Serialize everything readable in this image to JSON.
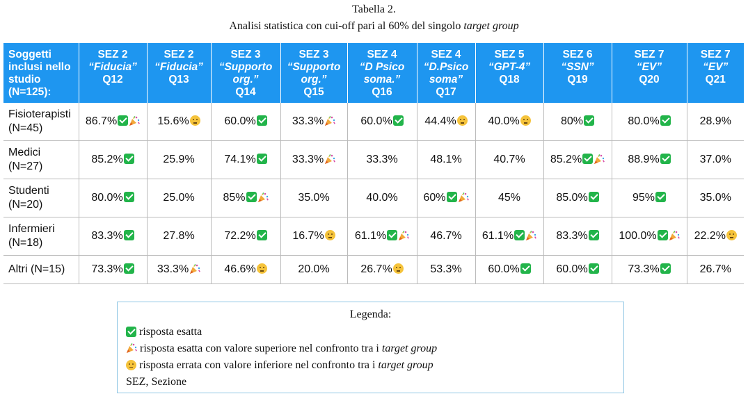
{
  "caption": {
    "title": "Tabella 2.",
    "subtitle_pre": "Analisi statistica con cui-off  pari al 60% del singolo ",
    "subtitle_em": "target group"
  },
  "table": {
    "header_first": [
      "Soggetti",
      "inclusi nello",
      "studio",
      "(N=125):"
    ],
    "columns": [
      {
        "sez": "SEZ 2",
        "name": "“Fiducia”",
        "q": "Q12"
      },
      {
        "sez": "SEZ 2",
        "name": "“Fiducia”",
        "q": "Q13"
      },
      {
        "sez": "SEZ 3",
        "name": "“Supporto org.”",
        "q": "Q14"
      },
      {
        "sez": "SEZ 3",
        "name": "“Supporto org.”",
        "q": "Q15"
      },
      {
        "sez": "SEZ 4",
        "name": "“D Psico soma.”",
        "q": "Q16"
      },
      {
        "sez": "SEZ 4",
        "name": "“D.Psico soma”",
        "q": "Q17"
      },
      {
        "sez": "SEZ 5",
        "name": "“GPT-4”",
        "q": "Q18"
      },
      {
        "sez": "SEZ 6",
        "name": "“SSN”",
        "q": "Q19"
      },
      {
        "sez": "SEZ 7",
        "name": "“EV”",
        "q": "Q20"
      },
      {
        "sez": "SEZ  7",
        "name": "“EV”",
        "q": "Q21"
      }
    ],
    "rows": [
      {
        "label": [
          "Fisioterapisti",
          "(N=45)"
        ],
        "cells": [
          {
            "v": "86.7%",
            "s": [
              "check",
              "party"
            ]
          },
          {
            "v": "15.6%",
            "s": [
              "think"
            ]
          },
          {
            "v": "60.0%",
            "s": [
              "check"
            ]
          },
          {
            "v": "33.3%",
            "s": [
              "party"
            ]
          },
          {
            "v": "60.0%",
            "s": [
              "check"
            ]
          },
          {
            "v": "44.4%",
            "s": [
              "think"
            ]
          },
          {
            "v": "40.0%",
            "s": [
              "think"
            ]
          },
          {
            "v": "80%",
            "s": [
              "check"
            ]
          },
          {
            "v": "80.0%",
            "s": [
              "check"
            ]
          },
          {
            "v": "28.9%",
            "s": []
          }
        ]
      },
      {
        "label": [
          "Medici",
          "(N=27)"
        ],
        "cells": [
          {
            "v": "85.2%",
            "s": [
              "check"
            ]
          },
          {
            "v": "25.9%",
            "s": []
          },
          {
            "v": "74.1%",
            "s": [
              "check"
            ]
          },
          {
            "v": "33.3%",
            "s": [
              "party"
            ]
          },
          {
            "v": "33.3%",
            "s": []
          },
          {
            "v": "48.1%",
            "s": []
          },
          {
            "v": "40.7%",
            "s": []
          },
          {
            "v": "85.2%",
            "s": [
              "check",
              "party"
            ]
          },
          {
            "v": "88.9%",
            "s": [
              "check"
            ]
          },
          {
            "v": "37.0%",
            "s": []
          }
        ]
      },
      {
        "label": [
          "Studenti",
          "(N=20)"
        ],
        "cells": [
          {
            "v": "80.0%",
            "s": [
              "check"
            ]
          },
          {
            "v": "25.0%",
            "s": []
          },
          {
            "v": "85%",
            "s": [
              "check",
              "party"
            ]
          },
          {
            "v": "35.0%",
            "s": []
          },
          {
            "v": "40.0%",
            "s": []
          },
          {
            "v": "60%",
            "s": [
              "check",
              "party"
            ]
          },
          {
            "v": "45%",
            "s": []
          },
          {
            "v": "85.0%",
            "s": [
              "check"
            ]
          },
          {
            "v": "95%",
            "s": [
              "check"
            ]
          },
          {
            "v": "35.0%",
            "s": []
          }
        ]
      },
      {
        "label": [
          "Infermieri",
          "(N=18)"
        ],
        "cells": [
          {
            "v": "83.3%",
            "s": [
              "check"
            ]
          },
          {
            "v": "27.8%",
            "s": []
          },
          {
            "v": "72.2%",
            "s": [
              "check"
            ]
          },
          {
            "v": "16.7%",
            "s": [
              "think"
            ]
          },
          {
            "v": "61.1%",
            "s": [
              "check",
              "party"
            ]
          },
          {
            "v": "46.7%",
            "s": []
          },
          {
            "v": "61.1%",
            "s": [
              "check",
              "party"
            ]
          },
          {
            "v": "83.3%",
            "s": [
              "check"
            ]
          },
          {
            "v": "100.0%",
            "s": [
              "check",
              "party"
            ]
          },
          {
            "v": "22.2%",
            "s": [
              "think"
            ]
          }
        ]
      },
      {
        "label": [
          "Altri (N=15)"
        ],
        "cells": [
          {
            "v": "73.3%",
            "s": [
              "check"
            ]
          },
          {
            "v": "33.3%",
            "s": [
              "party"
            ]
          },
          {
            "v": "46.6%",
            "s": [
              "think"
            ]
          },
          {
            "v": "20.0%",
            "s": []
          },
          {
            "v": "26.7%",
            "s": [
              "think"
            ]
          },
          {
            "v": "53.3%",
            "s": []
          },
          {
            "v": "60.0%",
            "s": [
              "check"
            ]
          },
          {
            "v": "60.0%",
            "s": [
              "check"
            ]
          },
          {
            "v": "73.3%",
            "s": [
              "check"
            ]
          },
          {
            "v": "26.7%",
            "s": []
          }
        ]
      }
    ]
  },
  "legend": {
    "title": "Legenda:",
    "items": [
      {
        "icon": "check-icon",
        "text": "risposta esatta",
        "em": ""
      },
      {
        "icon": "party-popper-icon",
        "text": "risposta esatta con valore superiore nel confronto tra i ",
        "em": "target group"
      },
      {
        "icon": "thinking-face-icon",
        "text": "risposta errata con valore inferiore nel confronto tra i ",
        "em": "target group"
      }
    ],
    "note": "SEZ, Sezione"
  },
  "colors": {
    "header_bg": "#1e96f0",
    "check": "#22b44a",
    "think": "#f5c33b",
    "legend_border": "#8fc6e4"
  }
}
